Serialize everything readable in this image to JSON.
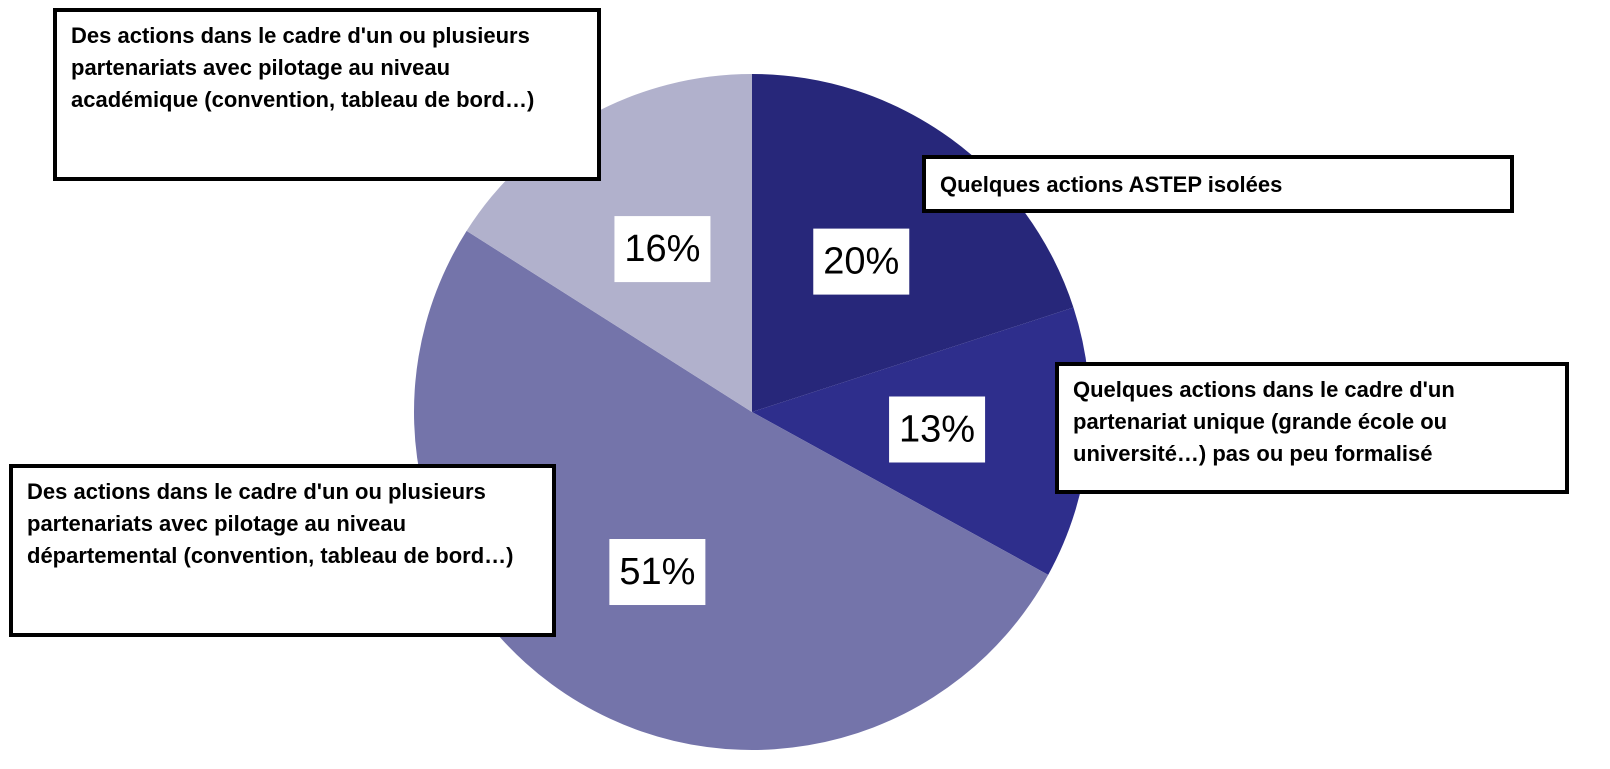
{
  "chart_data": {
    "type": "pie",
    "categories": [
      "Quelques actions ASTEP isolées",
      "Quelques actions dans le cadre d'un partenariat unique (grande école ou université…) pas ou peu formalisé",
      "Des actions dans le cadre d'un ou plusieurs partenariats avec pilotage au niveau départemental (convention, tableau de bord…)",
      "Des actions dans le cadre d'un ou plusieurs partenariats avec pilotage au niveau académique (convention, tableau de bord…)"
    ],
    "values": [
      20,
      13,
      51,
      16
    ],
    "value_labels": [
      "20%",
      "13%",
      "51%",
      "16%"
    ],
    "colors": [
      "#27277a",
      "#2e2e8c",
      "#7474aa",
      "#b1b1cc"
    ]
  }
}
